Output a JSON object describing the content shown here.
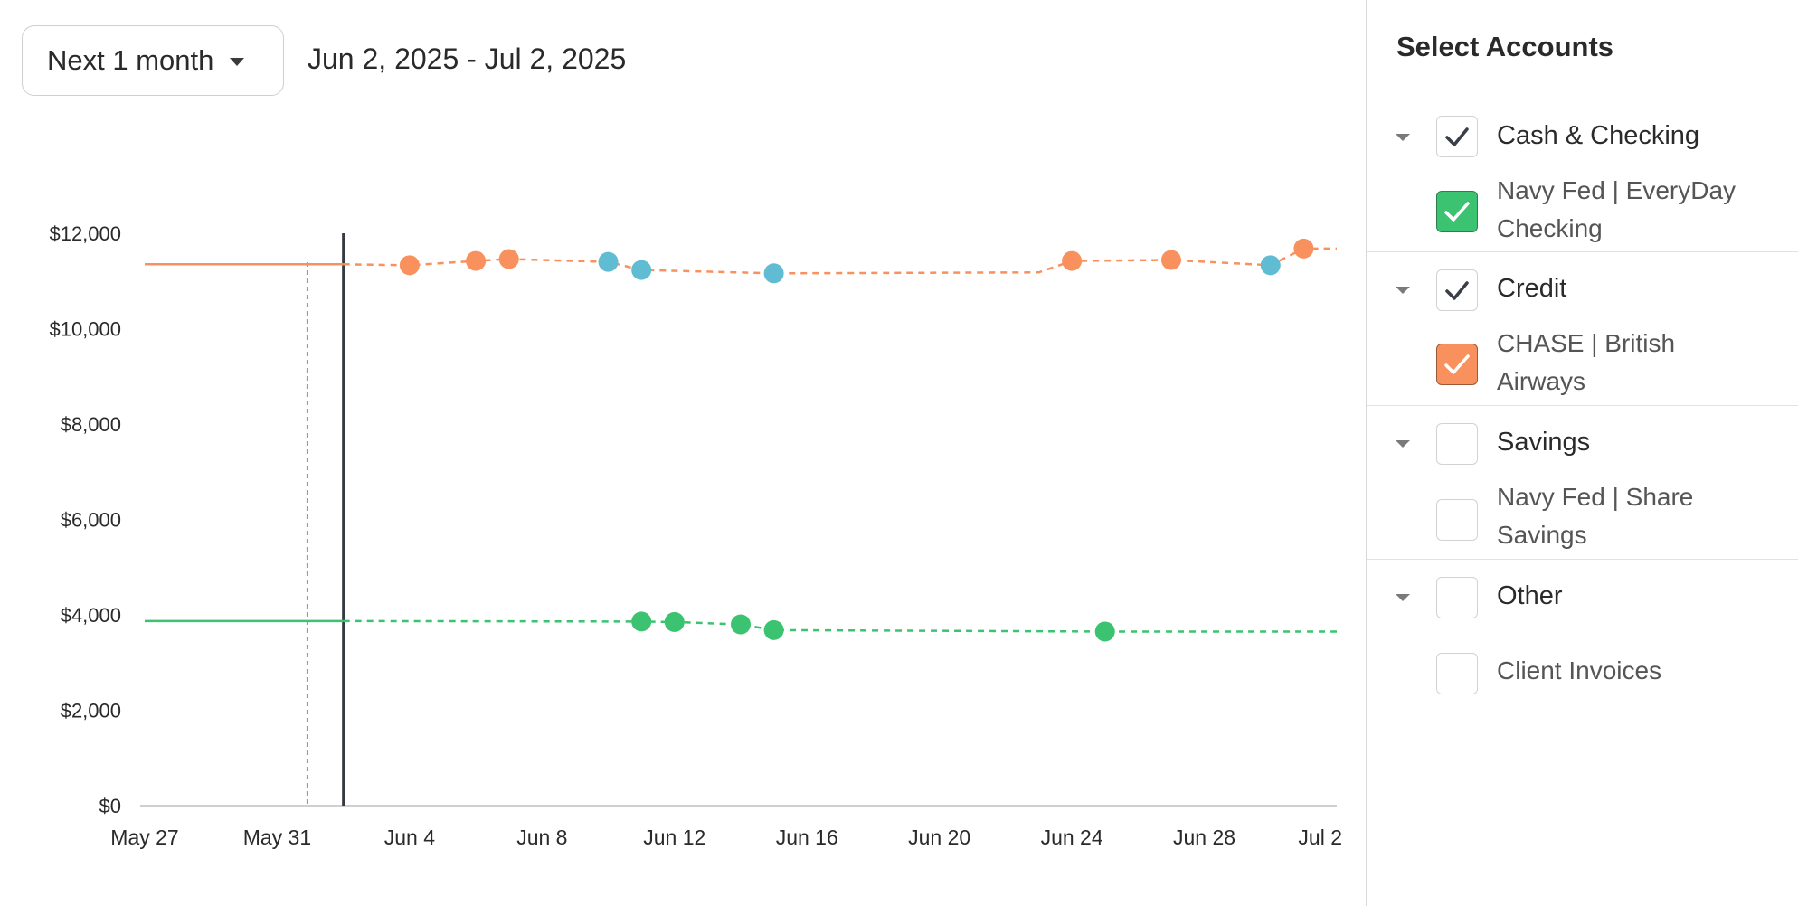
{
  "toolbar": {
    "range_label": "Next 1 month",
    "date_range": "Jun 2, 2025 - Jul 2, 2025"
  },
  "sidebar": {
    "title": "Select Accounts",
    "groups": [
      {
        "label": "Cash & Checking",
        "checked": true,
        "accounts": [
          {
            "label": "Navy Fed | EveryDay Checking",
            "checked": true,
            "color": "#3cc371"
          }
        ]
      },
      {
        "label": "Credit",
        "checked": true,
        "accounts": [
          {
            "label": "CHASE | British Airways",
            "checked": true,
            "color": "#f8915d"
          }
        ]
      },
      {
        "label": "Savings",
        "checked": false,
        "accounts": [
          {
            "label": "Navy Fed | Share Savings",
            "checked": false
          }
        ]
      },
      {
        "label": "Other",
        "checked": false,
        "accounts": [
          {
            "label": "Client Invoices",
            "checked": false
          }
        ]
      }
    ]
  },
  "chart_data": {
    "type": "line",
    "x_ticks": [
      "May 27",
      "May 31",
      "Jun 4",
      "Jun 8",
      "Jun 12",
      "Jun 16",
      "Jun 20",
      "Jun 24",
      "Jun 28",
      "Jul 2"
    ],
    "y_ticks": [
      "$0",
      "$2,000",
      "$4,000",
      "$6,000",
      "$8,000",
      "$10,000",
      "$12,000"
    ],
    "ylim": [
      0,
      12000
    ],
    "today": "Jun 2",
    "series": [
      {
        "account": "CHASE | British Airways",
        "color": "#f8915d",
        "history": [
          {
            "date": "May 27",
            "value": 11350
          },
          {
            "date": "Jun 2",
            "value": 11350
          }
        ],
        "forecast": [
          {
            "date": "Jun 2",
            "value": 11350
          },
          {
            "date": "Jun 4",
            "value": 11330,
            "marker": "#f8915d"
          },
          {
            "date": "Jun 6",
            "value": 11420,
            "marker": "#f8915d"
          },
          {
            "date": "Jun 7",
            "value": 11460,
            "marker": "#f8915d"
          },
          {
            "date": "Jun 10",
            "value": 11400,
            "marker": "#5fbcd3"
          },
          {
            "date": "Jun 11",
            "value": 11230,
            "marker": "#5fbcd3"
          },
          {
            "date": "Jun 15",
            "value": 11160,
            "marker": "#5fbcd3"
          },
          {
            "date": "Jun 23",
            "value": 11180
          },
          {
            "date": "Jun 24",
            "value": 11420,
            "marker": "#f8915d"
          },
          {
            "date": "Jun 27",
            "value": 11440,
            "marker": "#f8915d"
          },
          {
            "date": "Jun 30",
            "value": 11330,
            "marker": "#5fbcd3"
          },
          {
            "date": "Jul 1",
            "value": 11680,
            "marker": "#f8915d"
          },
          {
            "date": "Jul 2",
            "value": 11680
          }
        ]
      },
      {
        "account": "Navy Fed | EveryDay Checking",
        "color": "#3cc371",
        "history": [
          {
            "date": "May 27",
            "value": 3870
          },
          {
            "date": "Jun 2",
            "value": 3870
          }
        ],
        "forecast": [
          {
            "date": "Jun 2",
            "value": 3870
          },
          {
            "date": "Jun 11",
            "value": 3860,
            "marker": "#3cc371"
          },
          {
            "date": "Jun 12",
            "value": 3850,
            "marker": "#3cc371"
          },
          {
            "date": "Jun 14",
            "value": 3800,
            "marker": "#3cc371"
          },
          {
            "date": "Jun 15",
            "value": 3680,
            "marker": "#3cc371"
          },
          {
            "date": "Jun 25",
            "value": 3650,
            "marker": "#3cc371"
          },
          {
            "date": "Jul 2",
            "value": 3650
          }
        ]
      }
    ]
  }
}
